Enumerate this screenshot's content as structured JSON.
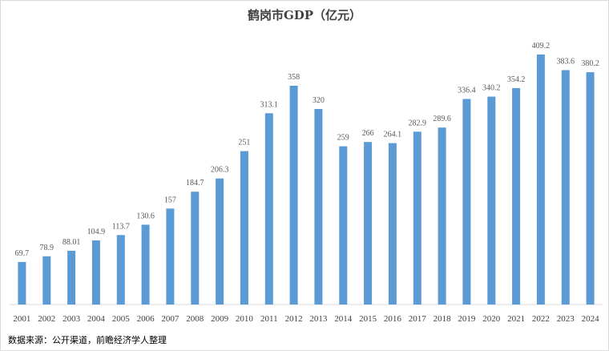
{
  "chart_data": {
    "type": "bar",
    "title": "鹤岗市GDP（亿元）",
    "categories": [
      "2001",
      "2002",
      "2003",
      "2004",
      "2005",
      "2006",
      "2007",
      "2008",
      "2009",
      "2010",
      "2011",
      "2012",
      "2013",
      "2014",
      "2015",
      "2016",
      "2017",
      "2018",
      "2019",
      "2020",
      "2021",
      "2022",
      "2023",
      "2024"
    ],
    "values": [
      69.7,
      78.9,
      88.01,
      104.9,
      113.7,
      130.6,
      157,
      184.7,
      206.3,
      251,
      313.1,
      358,
      320,
      259,
      266,
      264.1,
      282.9,
      289.6,
      336.4,
      340.2,
      354.2,
      409.2,
      383.6,
      380.2
    ],
    "value_labels": [
      "69.7",
      "78.9",
      "88.01",
      "104.9",
      "113.7",
      "130.6",
      "157",
      "184.7",
      "206.3",
      "251",
      "313.1",
      "358",
      "320",
      "259",
      "266",
      "264.1",
      "282.9",
      "289.6",
      "336.4",
      "340.2",
      "354.2",
      "409.2",
      "383.6",
      "380.2"
    ],
    "xlabel": "",
    "ylabel": "",
    "ylim": [
      0,
      420
    ],
    "grid": false,
    "legend": "none",
    "bar_color": "#5b9bd5",
    "axis_color": "#d9d9d9"
  },
  "source_note": "数据来源：公开渠道，前瞻经济学人整理"
}
